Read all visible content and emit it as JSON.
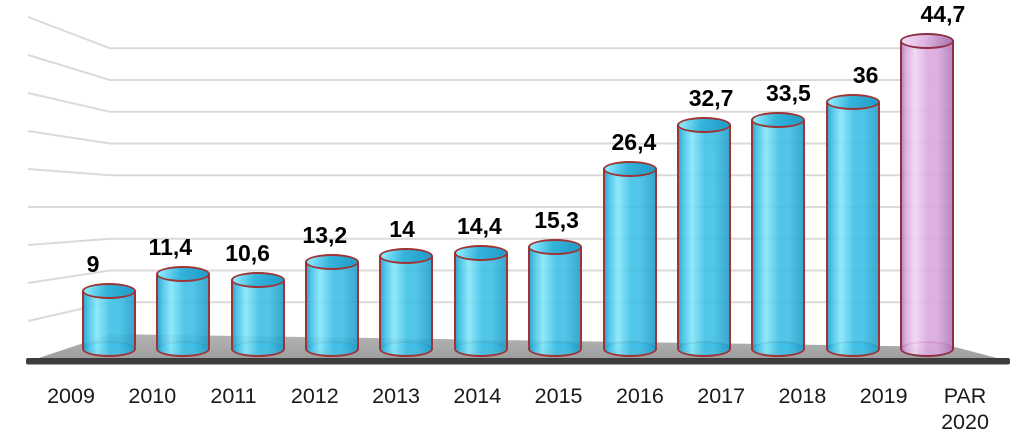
{
  "chart_data": {
    "type": "bar",
    "style": "3d-cylinder",
    "title": "",
    "xlabel": "",
    "ylabel": "",
    "categories": [
      "2009",
      "2010",
      "2011",
      "2012",
      "2013",
      "2014",
      "2015",
      "2016",
      "2017",
      "2018",
      "2019",
      "PAR 2020"
    ],
    "values": [
      9,
      11.4,
      10.6,
      13.2,
      14,
      14.4,
      15.3,
      26.4,
      32.7,
      33.5,
      36,
      44.7
    ],
    "value_labels": [
      "9",
      "11,4",
      "10,6",
      "13,2",
      "14",
      "14,4",
      "15,3",
      "26,4",
      "32,7",
      "33,5",
      "36",
      "44,7"
    ],
    "highlight_index": 11,
    "ylim": [
      0,
      45
    ],
    "grid_step": 5,
    "grid": true,
    "legend": false,
    "decimal_separator": ",",
    "colors": {
      "bar_body_mid": "#3FC0E6",
      "bar_body_light": "#85E6FA",
      "bar_body_dark": "#239FCB",
      "bar_cap": "#35B4DB",
      "bar_outline": "#9E3434",
      "highlight_body_mid": "#D9A8DD",
      "highlight_body_light": "#F0D7F2",
      "highlight_body_dark": "#B27FB8",
      "highlight_cap": "#DFB7E3",
      "highlight_outline": "#8E2F44",
      "floor_back": "#B4B4B4",
      "floor_front": "#9C9C9C",
      "floor_edge": "#3D3D3D",
      "gridline": "#DADADA",
      "label_text": "#000000"
    }
  }
}
